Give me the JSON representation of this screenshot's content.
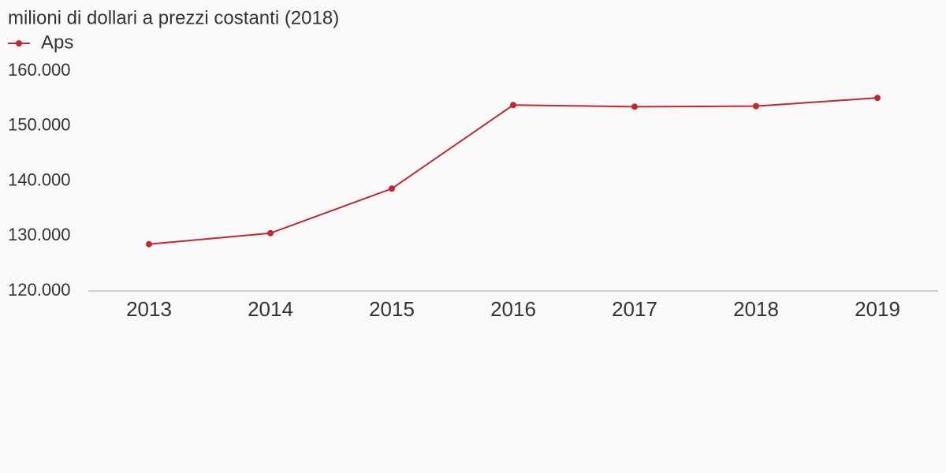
{
  "chart_data": {
    "type": "line",
    "title": "milioni di dollari a prezzi costanti (2018)",
    "categories": [
      "2013",
      "2014",
      "2015",
      "2016",
      "2017",
      "2018",
      "2019"
    ],
    "series": [
      {
        "name": "Aps",
        "color": "#c4262e",
        "values": [
          128500,
          130500,
          138600,
          153800,
          153500,
          153600,
          155100
        ]
      }
    ],
    "ylim": [
      120000,
      160000
    ],
    "yticks": [
      {
        "value": 120000,
        "label": "120.000"
      },
      {
        "value": 130000,
        "label": "130.000"
      },
      {
        "value": 140000,
        "label": "140.000"
      },
      {
        "value": 150000,
        "label": "150.000"
      },
      {
        "value": 160000,
        "label": "160.000"
      }
    ],
    "grid": false,
    "legend": "top-left"
  }
}
